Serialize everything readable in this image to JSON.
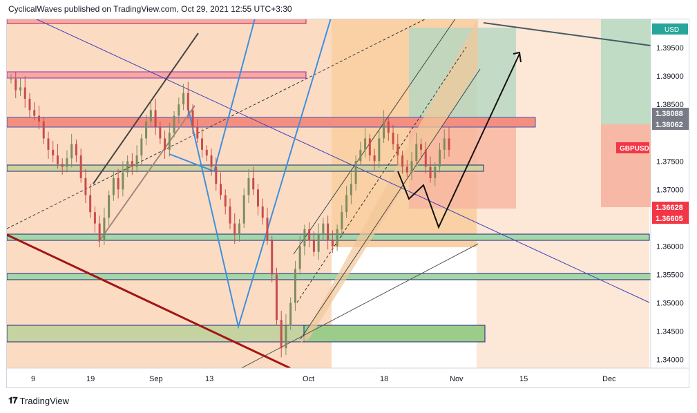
{
  "header": {
    "text": "CyclicalWaves published on TradingView.com, Oct 29, 2021 12:55 UTC+3:30"
  },
  "branding": {
    "logo_text": "TradingView"
  },
  "chart_data": {
    "type": "candlestick",
    "symbol": "GBPUSD",
    "currency": "USD",
    "x_ticks": [
      "9",
      "19",
      "Sep",
      "13",
      "Oct",
      "18",
      "Nov",
      "15",
      "Dec"
    ],
    "y_ticks": [
      "1.39500",
      "1.39000",
      "1.38500",
      "1.37500",
      "1.37000",
      "1.36000",
      "1.35500",
      "1.35000",
      "1.34500",
      "1.34000"
    ],
    "price_labels": [
      {
        "text": "1.38088",
        "color": "#787b86"
      },
      {
        "text": "1.38062",
        "color": "#787b86"
      },
      {
        "text": "GBPUSD",
        "color": "#f23645"
      },
      {
        "text": "1.36628",
        "color": "#f23645"
      },
      {
        "text": "1.36605",
        "color": "#f23645"
      }
    ],
    "ylim": [
      1.3385,
      1.4
    ],
    "candles_close_path": [
      1.3895,
      1.3875,
      1.388,
      1.386,
      1.384,
      1.383,
      1.382,
      1.379,
      1.377,
      1.376,
      1.3745,
      1.374,
      1.3755,
      1.378,
      1.376,
      1.372,
      1.369,
      1.366,
      1.364,
      1.361,
      1.365,
      1.369,
      1.372,
      1.37,
      1.373,
      1.375,
      1.374,
      1.376,
      1.379,
      1.382,
      1.384,
      1.381,
      1.379,
      1.377,
      1.38,
      1.383,
      1.385,
      1.387,
      1.384,
      1.381,
      1.379,
      1.377,
      1.376,
      1.374,
      1.371,
      1.369,
      1.367,
      1.364,
      1.362,
      1.364,
      1.369,
      1.372,
      1.37,
      1.367,
      1.365,
      1.361,
      1.355,
      1.347,
      1.342,
      1.346,
      1.35,
      1.356,
      1.36,
      1.363,
      1.361,
      1.359,
      1.362,
      1.364,
      1.361,
      1.36,
      1.363,
      1.366,
      1.369,
      1.371,
      1.375,
      1.377,
      1.379,
      1.376,
      1.375,
      1.379,
      1.382,
      1.38,
      1.378,
      1.376,
      1.374,
      1.373,
      1.375,
      1.378,
      1.377,
      1.374,
      1.372,
      1.374,
      1.377,
      1.379,
      1.377
    ],
    "grid": false
  }
}
